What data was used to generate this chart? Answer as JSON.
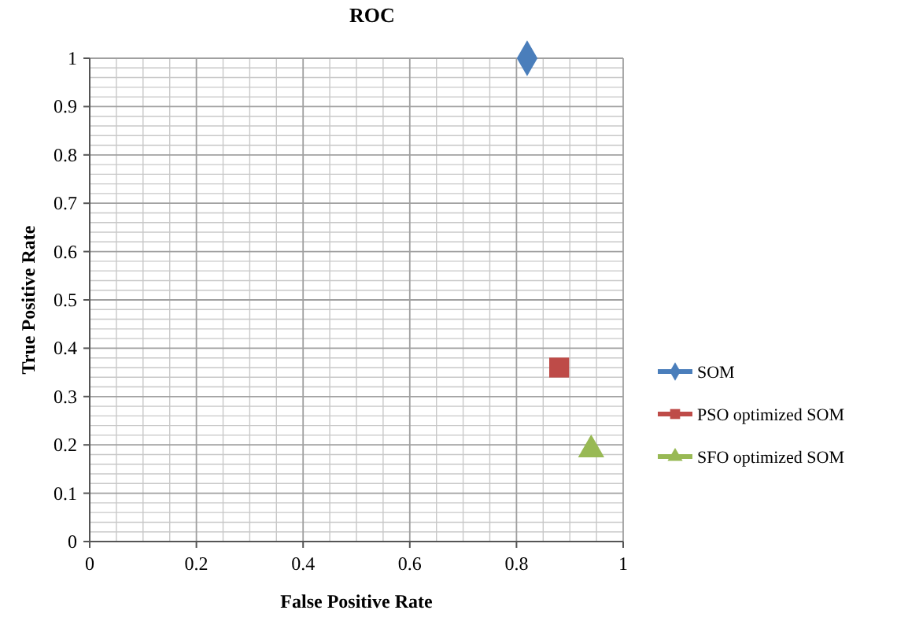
{
  "chart_data": {
    "type": "scatter",
    "title": "ROC",
    "xlabel": "False Positive Rate",
    "ylabel": "True Positive Rate",
    "xlim": [
      0,
      1
    ],
    "xticks": [
      0,
      0.2,
      0.4,
      0.6,
      0.8,
      1
    ],
    "ylim": [
      0,
      1
    ],
    "yticks": [
      0,
      0.1,
      0.2,
      0.3,
      0.4,
      0.5,
      0.6,
      0.7,
      0.8,
      0.9,
      1
    ],
    "grid": true,
    "legend": "right",
    "series": [
      {
        "name": "SOM",
        "color": "#4a7ebb",
        "marker": "diamond",
        "x": [
          0.82
        ],
        "values": [
          1
        ]
      },
      {
        "name": "PSO optimized SOM",
        "color": "#be4b48",
        "marker": "square",
        "x": [
          0.88
        ],
        "values": [
          0.36
        ]
      },
      {
        "name": "SFO optimized SOM",
        "color": "#98b954",
        "marker": "triangle",
        "x": [
          0.94
        ],
        "values": [
          0.19
        ]
      }
    ]
  }
}
